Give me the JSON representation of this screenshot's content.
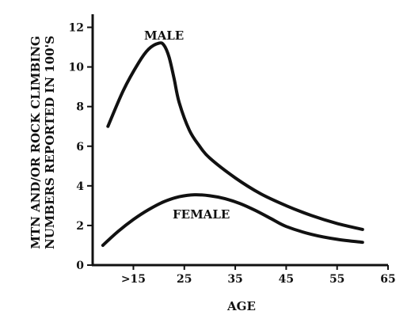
{
  "chart_data": {
    "type": "line",
    "title": "",
    "xlabel": "AGE",
    "ylabel_lines": [
      "MTN AND/OR ROCK CLIMBING",
      "NUMBERS REPORTED IN 100'S"
    ],
    "x_tick_labels": [
      ">15",
      "25",
      "35",
      "45",
      "55",
      "65"
    ],
    "x_tick_values": [
      15,
      25,
      35,
      45,
      55,
      65
    ],
    "y_tick_values": [
      0,
      2,
      4,
      6,
      8,
      10,
      12
    ],
    "xlim": [
      7,
      65
    ],
    "ylim": [
      0,
      12.5
    ],
    "grid": false,
    "legend": "none (series labeled directly on curves)",
    "series": [
      {
        "name": "MALE",
        "x": [
          10,
          13,
          16,
          18,
          20,
          21,
          22,
          23,
          24,
          26,
          28,
          30,
          35,
          40,
          45,
          50,
          55,
          60
        ],
        "y": [
          7.0,
          8.8,
          10.2,
          10.9,
          11.2,
          11.1,
          10.5,
          9.4,
          8.2,
          6.8,
          6.0,
          5.4,
          4.4,
          3.6,
          3.0,
          2.5,
          2.1,
          1.8
        ]
      },
      {
        "name": "FEMALE",
        "x": [
          9,
          12,
          15,
          18,
          21,
          24,
          27,
          30,
          33,
          36,
          39,
          42,
          45,
          50,
          55,
          60
        ],
        "y": [
          1.0,
          1.7,
          2.3,
          2.8,
          3.2,
          3.45,
          3.55,
          3.5,
          3.35,
          3.1,
          2.75,
          2.35,
          1.95,
          1.55,
          1.3,
          1.15
        ]
      }
    ]
  },
  "series_labels": {
    "male": "MALE",
    "female": "FEMALE"
  }
}
